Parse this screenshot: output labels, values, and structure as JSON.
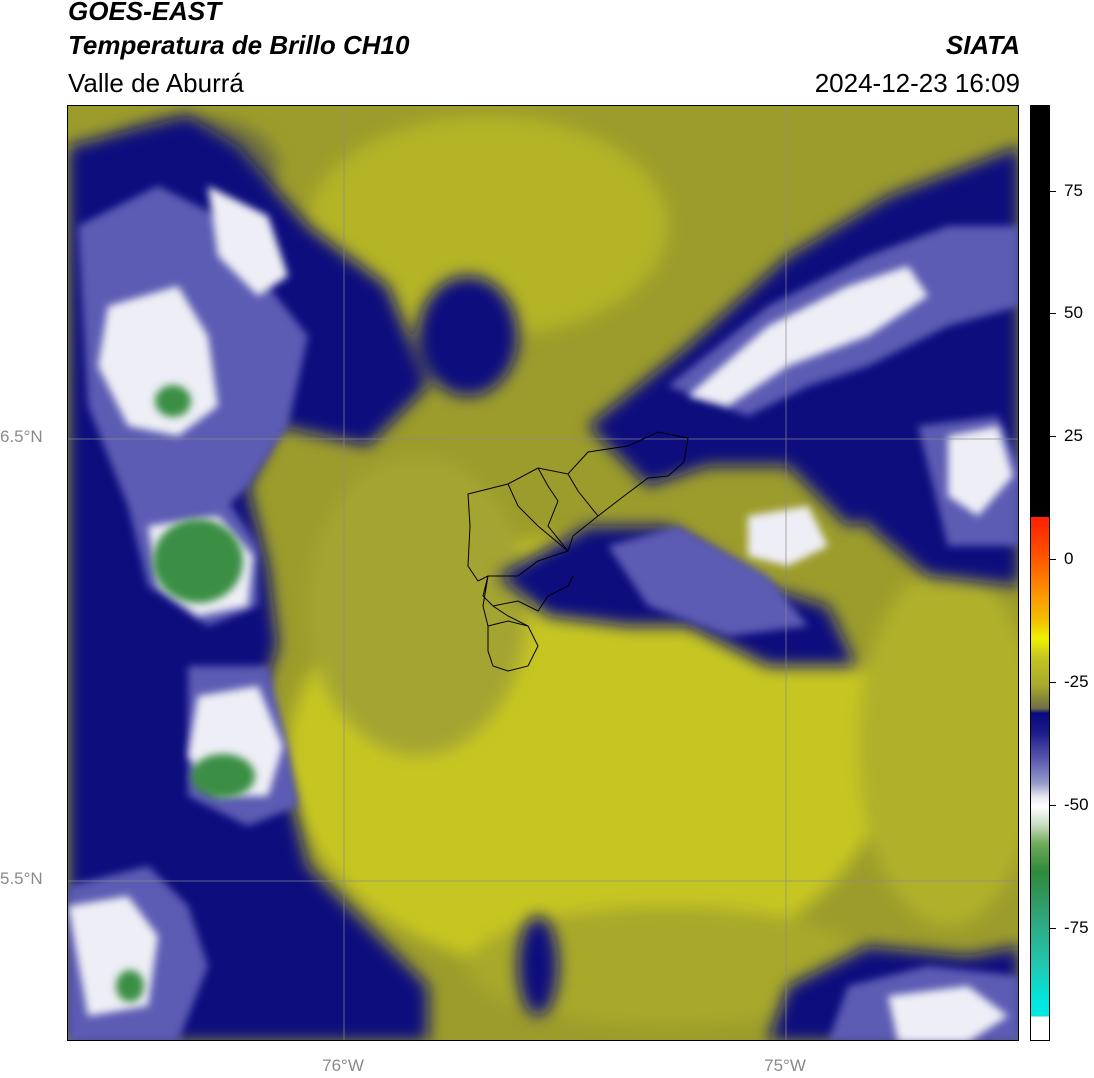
{
  "header": {
    "line1": "GOES-EAST",
    "line2": "Temperatura de Brillo CH10",
    "line3": "Valle de Aburrá",
    "brand": "SIATA",
    "datetime": "2024-12-23 16:09"
  },
  "map": {
    "lat_labels": [
      "6.5°N",
      "5.5°N"
    ],
    "lon_labels": [
      "76°W",
      "75°W"
    ],
    "features": [
      "cold cloud tops (blue/white/green)",
      "warm clear areas (olive/yellow)",
      "Valle de Aburrá municipality boundaries"
    ]
  },
  "colorbar": {
    "ticks": [
      "75",
      "50",
      "25",
      "0",
      "-25",
      "-50",
      "-75"
    ],
    "colors": {
      "black": "#000000",
      "red": "#ff2000",
      "orange": "#ff9000",
      "yellow": "#f0f000",
      "olive": "#a8aa2a",
      "navy": "#0a0a80",
      "blue": "#5a5ab0",
      "white": "#ffffff",
      "green": "#2e8a3a",
      "cyan": "#00e0d8"
    }
  }
}
